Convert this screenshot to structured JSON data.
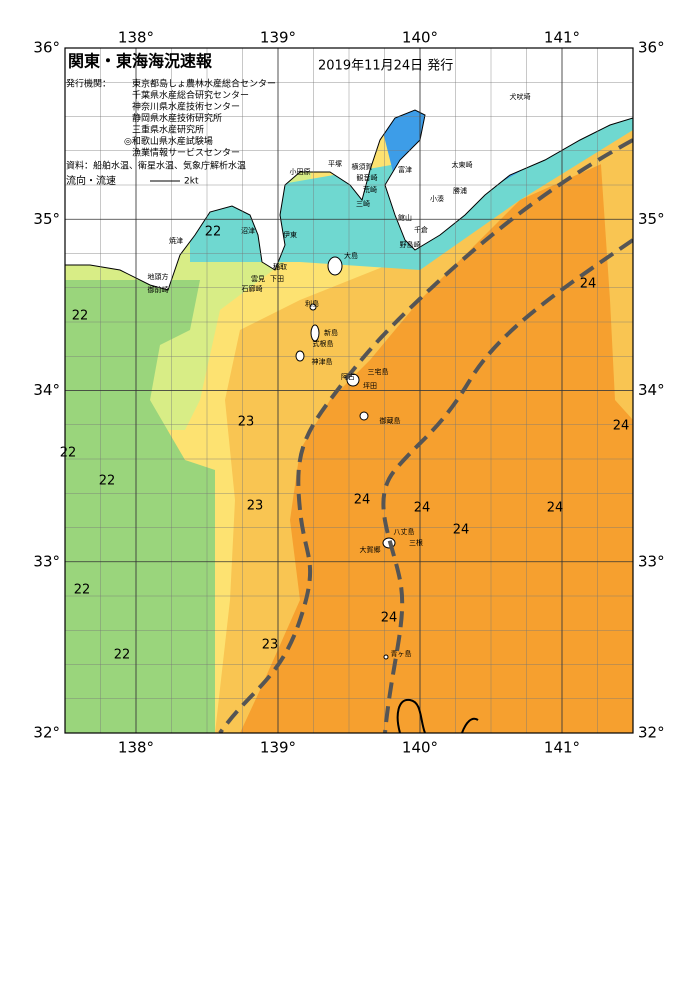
{
  "title": "関東・東海海況速報",
  "issue_date": "2019年11月24日 発行",
  "legend": {
    "agencies_label": "発行機関：",
    "agencies": [
      "東京都島しょ農林水産総合センター",
      "千葉県水産総合研究センター",
      "神奈川県水産技術センター",
      "静岡県水産技術研究所",
      "三重県水産研究所",
      "◎和歌山県水産試験場",
      "漁業情報サービスセンター"
    ],
    "sources": "資料：船舶水温、衛星水温、気象庁解析水温",
    "current_label": "流向・流速",
    "current_scale": "2kt"
  },
  "axes": {
    "lon_range": [
      137.5,
      141.5
    ],
    "lat_range": [
      32,
      36
    ],
    "lon_ticks": [
      {
        "value": 138,
        "label": "138°"
      },
      {
        "value": 139,
        "label": "139°"
      },
      {
        "value": 140,
        "label": "140°"
      },
      {
        "value": 141,
        "label": "141°"
      }
    ],
    "lat_ticks": [
      {
        "value": 36,
        "label": "36°"
      },
      {
        "value": 35,
        "label": "35°"
      },
      {
        "value": 34,
        "label": "34°"
      },
      {
        "value": 33,
        "label": "33°"
      },
      {
        "value": 32,
        "label": "32°"
      }
    ]
  },
  "place_names": [
    "犬吠埼",
    "太東崎",
    "勝浦",
    "小湊",
    "千倉",
    "館山",
    "野島崎",
    "富津",
    "観音崎",
    "横須賀",
    "平塚",
    "小田原",
    "荒崎",
    "三崎",
    "大島",
    "伊東",
    "稲取",
    "下田",
    "雲見",
    "石廊崎",
    "沼津",
    "焼津",
    "御前崎",
    "地頭方",
    "利島",
    "新島",
    "式根島",
    "神津島",
    "三宅島",
    "阿古",
    "坪田",
    "御蔵島",
    "八丈島",
    "三根",
    "大賀郷",
    "青ヶ島"
  ],
  "isotherm_labels": [
    "22",
    "22",
    "22",
    "22",
    "22",
    "22",
    "23",
    "23",
    "23",
    "24",
    "24",
    "24",
    "24",
    "24",
    "24",
    "24"
  ]
}
